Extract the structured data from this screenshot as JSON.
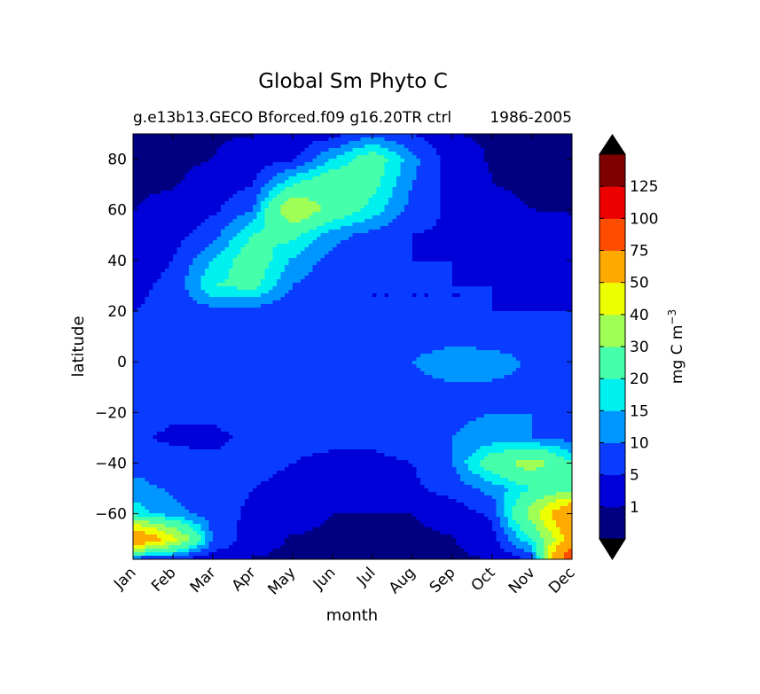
{
  "chart_data": {
    "type": "heatmap",
    "title": "Global Sm Phyto C",
    "subtitle_left": "g.e13b13.GECO Bforced.f09 g16.20TR ctrl",
    "subtitle_right": "1986-2005",
    "xlabel": "month",
    "ylabel": "latitude",
    "x_categories": [
      "Jan",
      "Feb",
      "Mar",
      "Apr",
      "May",
      "Jun",
      "Jul",
      "Aug",
      "Sep",
      "Oct",
      "Nov",
      "Dec"
    ],
    "ylim": [
      -78,
      90
    ],
    "y_ticks": [
      80,
      60,
      40,
      20,
      0,
      -20,
      -40,
      -60
    ],
    "colorbar": {
      "label": "mg C m",
      "label_superscript": "−3",
      "levels": [
        0,
        1,
        5,
        10,
        15,
        20,
        30,
        40,
        50,
        75,
        100,
        125,
        150
      ],
      "tick_labels": [
        "1",
        "5",
        "10",
        "15",
        "20",
        "30",
        "40",
        "50",
        "75",
        "100",
        "125"
      ],
      "colors": [
        "#000080",
        "#0000d8",
        "#0a3cff",
        "#0096ff",
        "#00f0f0",
        "#46ffaa",
        "#a0ff55",
        "#eeff00",
        "#ffaa00",
        "#ff4d00",
        "#ee0000",
        "#7f0000"
      ],
      "extend_min_color": "#000000",
      "extend_max_color": "#000000"
    },
    "grid_month_index": [
      0,
      1,
      2,
      3,
      4,
      5,
      6,
      7,
      8,
      9,
      10,
      11
    ],
    "grid_latitude": [
      90,
      80,
      70,
      60,
      50,
      40,
      30,
      20,
      10,
      0,
      -10,
      -20,
      -30,
      -40,
      -50,
      -60,
      -70,
      -78
    ],
    "values": [
      [
        0.8,
        0.8,
        0.8,
        0.9,
        1.5,
        3,
        8,
        5,
        1,
        0.8,
        0.8,
        0.8
      ],
      [
        0.5,
        0.5,
        1,
        2,
        4,
        15,
        25,
        12,
        2,
        0.8,
        0.5,
        0.5
      ],
      [
        0.5,
        0.8,
        2,
        5,
        20,
        28,
        22,
        10,
        3,
        1,
        0.5,
        0.5
      ],
      [
        1,
        2,
        4,
        10,
        40,
        26,
        18,
        8,
        4,
        2,
        1,
        0.8
      ],
      [
        2,
        3,
        8,
        20,
        22,
        12,
        8,
        5,
        4,
        3,
        2,
        2
      ],
      [
        3,
        5,
        15,
        25,
        14,
        8,
        5,
        5,
        5,
        4,
        3,
        3
      ],
      [
        4,
        6,
        20,
        22,
        10,
        6,
        5,
        5,
        5,
        5,
        4,
        4
      ],
      [
        5,
        6,
        8,
        8,
        6,
        5,
        5,
        5,
        5,
        5,
        5,
        5
      ],
      [
        6,
        6,
        6,
        6,
        6,
        6,
        7,
        7,
        7,
        7,
        6,
        6
      ],
      [
        8,
        8,
        7,
        7,
        7,
        7,
        8,
        10,
        14,
        13,
        9,
        8
      ],
      [
        7,
        7,
        7,
        7,
        6,
        6,
        7,
        8,
        9,
        9,
        8,
        7
      ],
      [
        7,
        6,
        6,
        7,
        7,
        7,
        7,
        8,
        9,
        10,
        10,
        9
      ],
      [
        6,
        4,
        4,
        6,
        6,
        6,
        6,
        7,
        10,
        12,
        10,
        8
      ],
      [
        8,
        7,
        6,
        6,
        5,
        4,
        4,
        5,
        10,
        25,
        35,
        20
      ],
      [
        12,
        9,
        7,
        5,
        4,
        3,
        3,
        4,
        7,
        12,
        20,
        25
      ],
      [
        18,
        12,
        7,
        4,
        2,
        1,
        0.8,
        1,
        2,
        6,
        35,
        70
      ],
      [
        70,
        45,
        10,
        2,
        0.8,
        0.6,
        0.6,
        0.6,
        0.8,
        3,
        20,
        55
      ],
      [
        5,
        4,
        2,
        0.9,
        0.6,
        0.5,
        0.5,
        0.5,
        0.6,
        1,
        5,
        100
      ]
    ]
  }
}
